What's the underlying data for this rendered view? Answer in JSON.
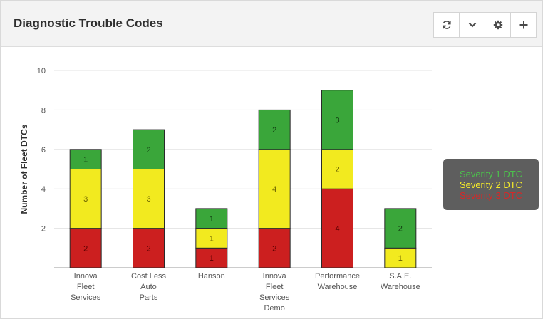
{
  "widget": {
    "title": "Diagnostic Trouble Codes",
    "toolbar": {
      "refresh_icon": "refresh-icon",
      "collapse_icon": "chevron-down-icon",
      "settings_icon": "gear-icon",
      "add_icon": "plus-icon"
    }
  },
  "chart_data": {
    "type": "bar",
    "stacked": true,
    "title": "",
    "xlabel": "",
    "ylabel": "Number of Fleet DTCs",
    "ylim": [
      0,
      10
    ],
    "yticks": [
      2,
      4,
      6,
      8,
      10
    ],
    "grid": true,
    "legend_position": "right",
    "categories": [
      [
        "Innova",
        "Fleet",
        "Services"
      ],
      [
        "Cost Less",
        "Auto",
        "Parts"
      ],
      [
        "Hanson"
      ],
      [
        "Innova",
        "Fleet",
        "Services",
        "Demo"
      ],
      [
        "Performance",
        "Warehouse"
      ],
      [
        "S.A.E.",
        "Warehouse"
      ]
    ],
    "series": [
      {
        "name": "Severity 3 DTC",
        "color": "#cc1f1f",
        "values": [
          2,
          2,
          1,
          2,
          4,
          0
        ]
      },
      {
        "name": "Severity 2 DTC",
        "color": "#f2ea1f",
        "values": [
          3,
          3,
          1,
          4,
          2,
          1
        ]
      },
      {
        "name": "Severity 1 DTC",
        "color": "#3aa63a",
        "values": [
          1,
          2,
          1,
          2,
          3,
          2
        ]
      }
    ],
    "legend_text_colors": [
      "#4cc04c",
      "#f5ea2a",
      "#d62828"
    ]
  }
}
